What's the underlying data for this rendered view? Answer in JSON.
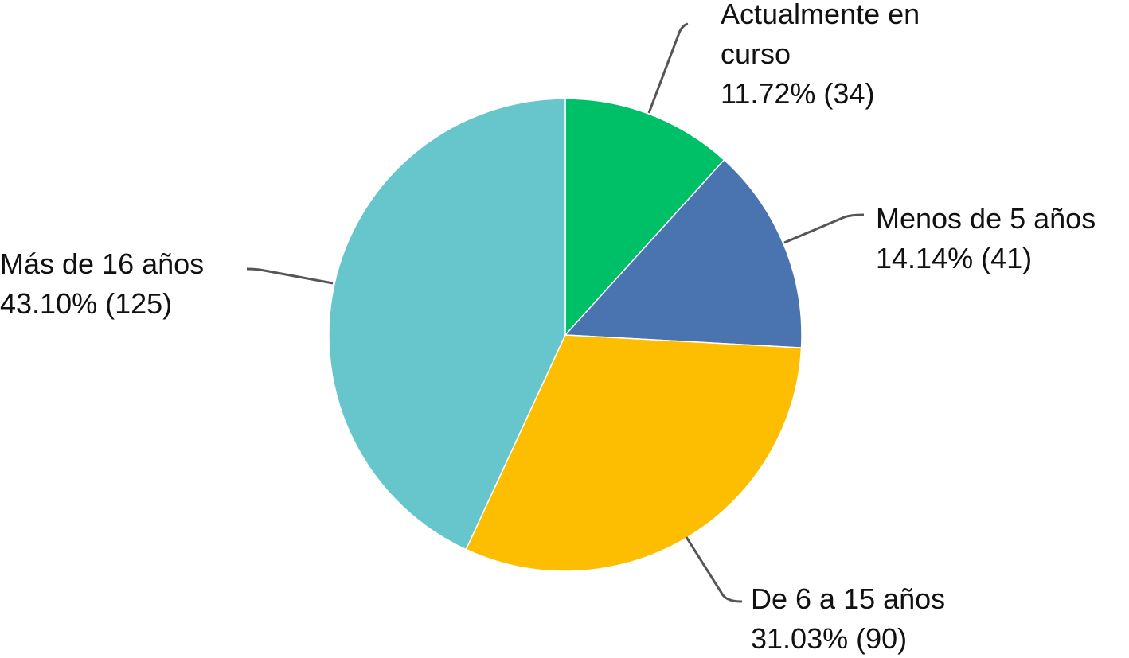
{
  "chart_data": {
    "type": "pie",
    "categories": [
      "Actualmente en curso",
      "Menos de 5 años",
      "De 6 a 15 años",
      "Más de 16 años"
    ],
    "values": [
      11.72,
      14.14,
      31.03,
      43.1
    ],
    "value_labels": [
      "11.72% (34)",
      "14.14% (41)",
      "31.03% (90)",
      "43.10% (125)"
    ],
    "colors": [
      "#00c067",
      "#4a74b0",
      "#fdbd00",
      "#66c6cb"
    ]
  }
}
